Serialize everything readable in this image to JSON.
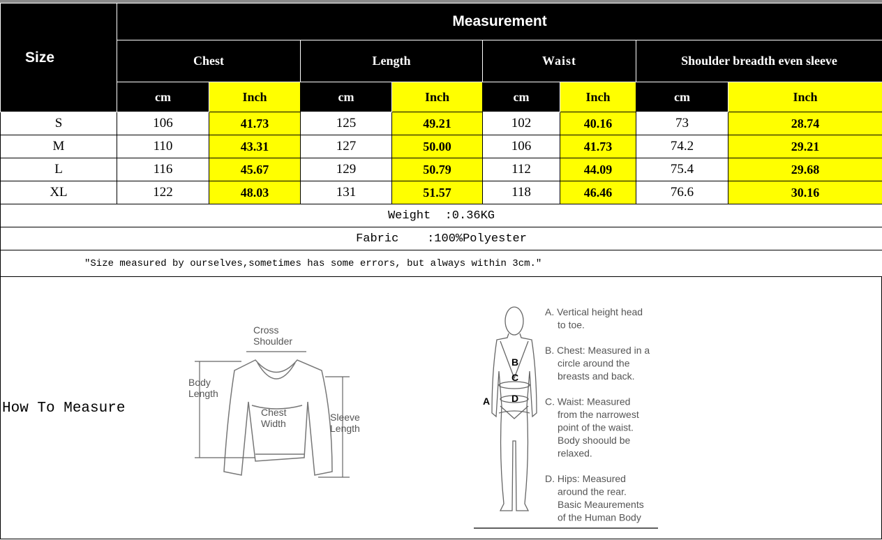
{
  "table": {
    "size_header": "Size",
    "measurement_header": "Measurement",
    "groups": [
      "Chest",
      "Length",
      "Waist",
      "Shoulder breadth even sleeve"
    ],
    "units": [
      "cm",
      "Inch"
    ],
    "rows": [
      {
        "size": "S",
        "values": [
          "106",
          "41.73",
          "125",
          "49.21",
          "102",
          "40.16",
          "73",
          "28.74"
        ]
      },
      {
        "size": "M",
        "values": [
          "110",
          "43.31",
          "127",
          "50.00",
          "106",
          "41.73",
          "74.2",
          "29.21"
        ]
      },
      {
        "size": "L",
        "values": [
          "116",
          "45.67",
          "129",
          "50.79",
          "112",
          "44.09",
          "75.4",
          "29.68"
        ]
      },
      {
        "size": "XL",
        "values": [
          "122",
          "48.03",
          "131",
          "51.57",
          "118",
          "46.46",
          "76.6",
          "30.16"
        ]
      }
    ],
    "weight": "Weight  :0.36KG",
    "fabric": "Fabric    :100%Polyester",
    "note": "\"Size measured by ourselves,sometimes has some errors, but always within 3cm.\""
  },
  "colors": {
    "header_bg": "#000000",
    "inch_highlight": "#ffff00"
  },
  "how_to_measure": {
    "label": "How To Measure",
    "sweater": {
      "cross_shoulder": [
        "Cross",
        "Shoulder"
      ],
      "body_length": [
        "Body",
        "Length"
      ],
      "chest_width": [
        "Chest",
        "Width"
      ],
      "sleeve_length": [
        "Sleeve",
        "Length"
      ]
    },
    "body": {
      "markers": [
        "A",
        "B",
        "C",
        "D"
      ],
      "notes": [
        [
          "A. Vertical height head",
          "to toe."
        ],
        [
          "B. Chest: Measured in a",
          "circle around the",
          "breasts and back."
        ],
        [
          "C. Waist: Measured",
          "from the narrowest",
          "point of the waist.",
          "Body shoould be",
          "relaxed."
        ],
        [
          "D. Hips: Measured",
          "around the rear.",
          "Basic Meaurements",
          "of the Human Body"
        ]
      ]
    }
  }
}
